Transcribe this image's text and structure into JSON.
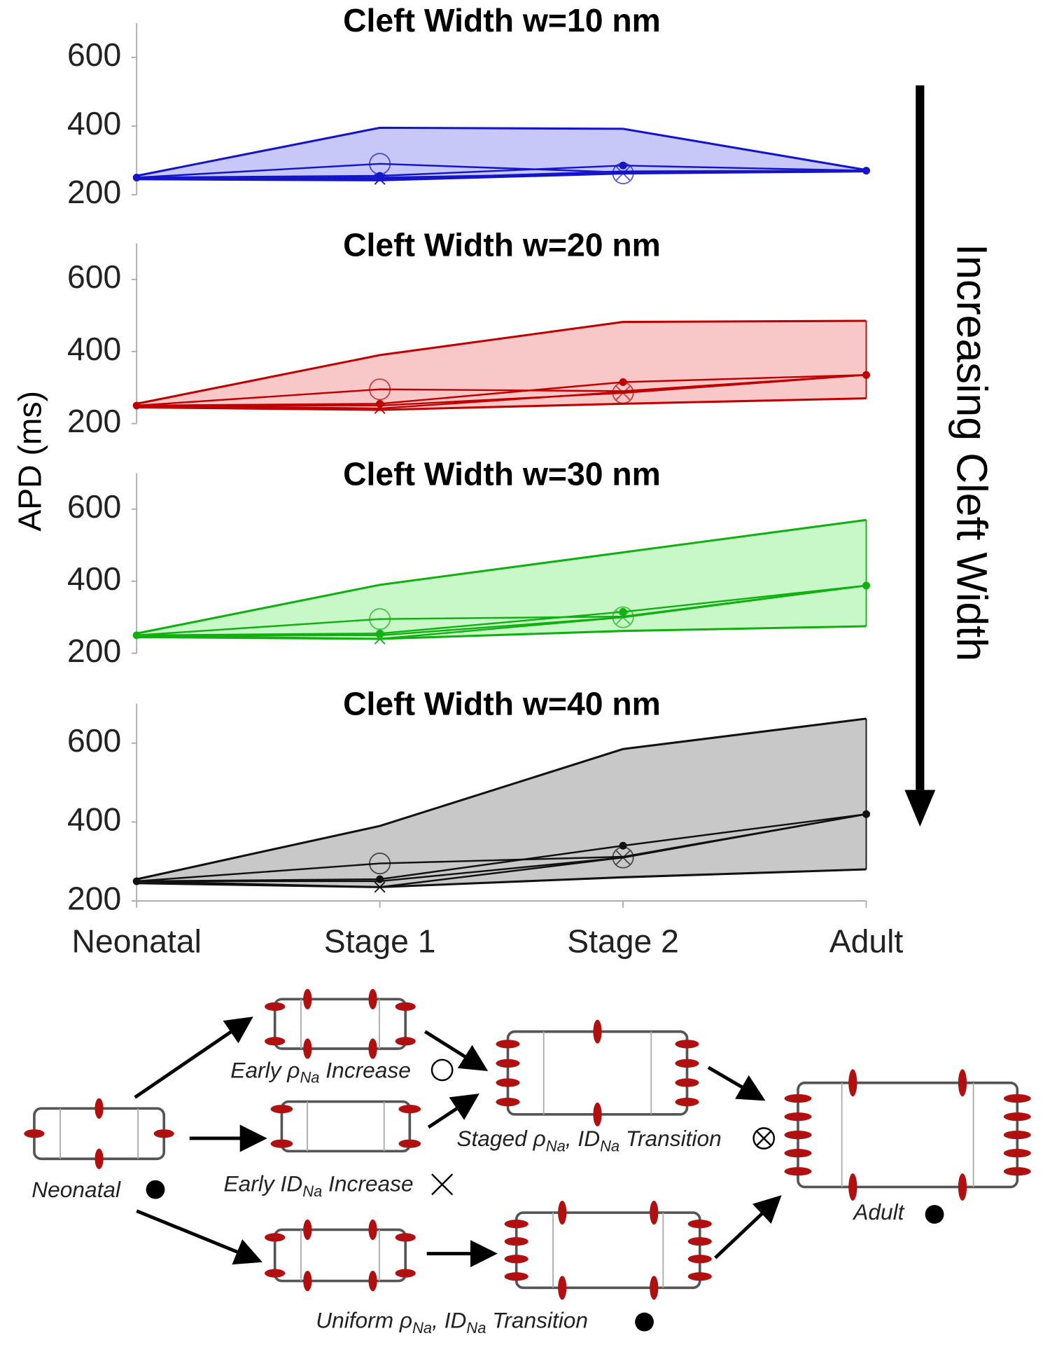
{
  "chart_data": [
    {
      "type": "band-line",
      "title": "Cleft Width w=10 nm",
      "annotation": "Increasing Cleft Width",
      "ylim": [
        200,
        700
      ],
      "yticks": [
        200,
        400,
        600
      ],
      "color": "#1414c8",
      "fill": "#c8c8f8",
      "band": {
        "upper": [
          255,
          395,
          392,
          272
        ],
        "lower": [
          245,
          242,
          262,
          268
        ]
      },
      "series": [
        {
          "marker": "circle",
          "values": [
            250,
            290,
            265,
            270
          ]
        },
        {
          "marker": "x",
          "values": [
            250,
            245,
            268,
            270
          ]
        },
        {
          "marker": "otimes",
          "values": [
            250,
            250,
            262,
            270
          ]
        },
        {
          "marker": "dot",
          "values": [
            250,
            255,
            285,
            270
          ]
        }
      ]
    },
    {
      "type": "band-line",
      "title": "Cleft Width w=20 nm",
      "ylabel": "APD (ms)",
      "ylim": [
        200,
        700
      ],
      "yticks": [
        200,
        400,
        600
      ],
      "color": "#c00000",
      "fill": "#f8c8c8",
      "band": {
        "upper": [
          255,
          390,
          482,
          485
        ],
        "lower": [
          245,
          238,
          255,
          270
        ]
      },
      "series": [
        {
          "marker": "circle",
          "values": [
            250,
            295,
            290,
            335
          ]
        },
        {
          "marker": "x",
          "values": [
            250,
            242,
            288,
            335
          ]
        },
        {
          "marker": "otimes",
          "values": [
            250,
            250,
            285,
            335
          ]
        },
        {
          "marker": "dot",
          "values": [
            250,
            255,
            315,
            335
          ]
        }
      ]
    },
    {
      "type": "band-line",
      "title": "Cleft Width w=30 nm",
      "ylim": [
        200,
        700
      ],
      "yticks": [
        200,
        400,
        600
      ],
      "color": "#10b010",
      "fill": "#c8f8c8",
      "band": {
        "upper": [
          255,
          390,
          480,
          570
        ],
        "lower": [
          245,
          240,
          262,
          275
        ]
      },
      "series": [
        {
          "marker": "circle",
          "values": [
            250,
            295,
            302,
            388
          ]
        },
        {
          "marker": "x",
          "values": [
            250,
            240,
            300,
            388
          ]
        },
        {
          "marker": "otimes",
          "values": [
            250,
            250,
            300,
            388
          ]
        },
        {
          "marker": "dot",
          "values": [
            250,
            255,
            315,
            388
          ]
        }
      ]
    },
    {
      "type": "band-line",
      "title": "Cleft Width w=40 nm",
      "ylim": [
        200,
        700
      ],
      "yticks": [
        200,
        400,
        600
      ],
      "color": "#111111",
      "fill": "#c8c8c8",
      "categories": [
        "Neonatal",
        "Stage 1",
        "Stage 2",
        "Adult"
      ],
      "band": {
        "upper": [
          255,
          390,
          585,
          662
        ],
        "lower": [
          245,
          235,
          260,
          280
        ]
      },
      "series": [
        {
          "marker": "circle",
          "values": [
            250,
            295,
            312,
            420
          ]
        },
        {
          "marker": "x",
          "values": [
            250,
            235,
            310,
            420
          ]
        },
        {
          "marker": "otimes",
          "values": [
            250,
            250,
            310,
            420
          ]
        },
        {
          "marker": "dot",
          "values": [
            250,
            255,
            340,
            420
          ]
        }
      ]
    }
  ],
  "diagram": {
    "neonatal": "Neonatal",
    "early_rho": [
      "Early ρ",
      "Na",
      " Increase"
    ],
    "early_id": [
      "Early ID",
      "Na",
      " Increase"
    ],
    "staged": [
      "Staged ρ",
      "Na",
      ", ID",
      "Na",
      " Transition"
    ],
    "uniform": [
      "Uniform ρ",
      "Na",
      ", ID",
      "Na",
      " Transition"
    ],
    "adult": "Adult"
  }
}
